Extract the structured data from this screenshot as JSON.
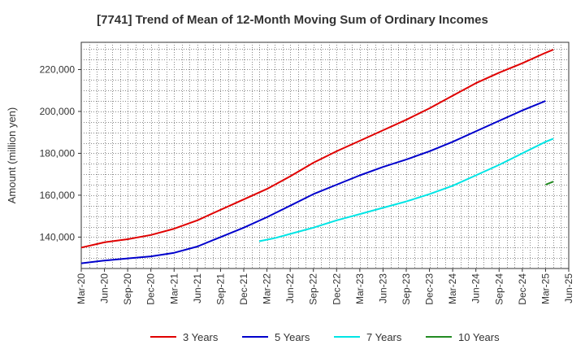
{
  "chart_data": {
    "type": "line",
    "title": "[7741]  Trend of Mean of 12-Month Moving Sum of Ordinary Incomes",
    "xlabel": "",
    "ylabel": "Amount (million yen)",
    "ylim": [
      125000,
      233000
    ],
    "yticks": [
      140000,
      160000,
      180000,
      200000,
      220000
    ],
    "ytick_labels": [
      "140,000",
      "160,000",
      "180,000",
      "200,000",
      "220,000"
    ],
    "x_start": "2020-03",
    "x_end": "2025-06",
    "xtick_labels": [
      "Mar-20",
      "Jun-20",
      "Sep-20",
      "Dec-20",
      "Mar-21",
      "Jun-21",
      "Sep-21",
      "Dec-21",
      "Mar-22",
      "Jun-22",
      "Sep-22",
      "Dec-22",
      "Mar-23",
      "Jun-23",
      "Sep-23",
      "Dec-23",
      "Mar-24",
      "Jun-24",
      "Sep-24",
      "Dec-24",
      "Mar-25",
      "Jun-25"
    ],
    "grid": true,
    "legend_position": "bottom",
    "series": [
      {
        "name": "3 Years",
        "color": "#e00000",
        "points": [
          [
            0,
            135000
          ],
          [
            3,
            137500
          ],
          [
            6,
            139000
          ],
          [
            9,
            141000
          ],
          [
            12,
            144000
          ],
          [
            15,
            148000
          ],
          [
            18,
            153000
          ],
          [
            21,
            158000
          ],
          [
            24,
            163000
          ],
          [
            27,
            169000
          ],
          [
            30,
            175500
          ],
          [
            33,
            181000
          ],
          [
            36,
            186000
          ],
          [
            39,
            191000
          ],
          [
            42,
            196000
          ],
          [
            45,
            201500
          ],
          [
            48,
            207500
          ],
          [
            51,
            213500
          ],
          [
            54,
            218500
          ],
          [
            57,
            223000
          ],
          [
            60,
            228000
          ],
          [
            61,
            229500
          ]
        ]
      },
      {
        "name": "5 Years",
        "color": "#0000cc",
        "points": [
          [
            0,
            127500
          ],
          [
            3,
            128800
          ],
          [
            6,
            129800
          ],
          [
            9,
            130800
          ],
          [
            12,
            132500
          ],
          [
            15,
            135500
          ],
          [
            18,
            140000
          ],
          [
            21,
            144500
          ],
          [
            24,
            149500
          ],
          [
            27,
            155000
          ],
          [
            30,
            160500
          ],
          [
            33,
            165000
          ],
          [
            36,
            169500
          ],
          [
            39,
            173500
          ],
          [
            42,
            177000
          ],
          [
            45,
            181000
          ],
          [
            48,
            185500
          ],
          [
            51,
            190500
          ],
          [
            54,
            195500
          ],
          [
            57,
            200500
          ],
          [
            60,
            205000
          ]
        ]
      },
      {
        "name": "7 Years",
        "color": "#00e5e5",
        "points": [
          [
            23,
            138000
          ],
          [
            25,
            139500
          ],
          [
            27,
            141500
          ],
          [
            30,
            144500
          ],
          [
            33,
            148000
          ],
          [
            36,
            151000
          ],
          [
            39,
            154000
          ],
          [
            42,
            157000
          ],
          [
            45,
            160500
          ],
          [
            48,
            164500
          ],
          [
            51,
            169500
          ],
          [
            54,
            174500
          ],
          [
            57,
            180000
          ],
          [
            60,
            185500
          ],
          [
            61,
            187000
          ]
        ]
      },
      {
        "name": "10 Years",
        "color": "#228b22",
        "points": [
          [
            60,
            165000
          ],
          [
            61,
            166500
          ]
        ]
      }
    ]
  }
}
